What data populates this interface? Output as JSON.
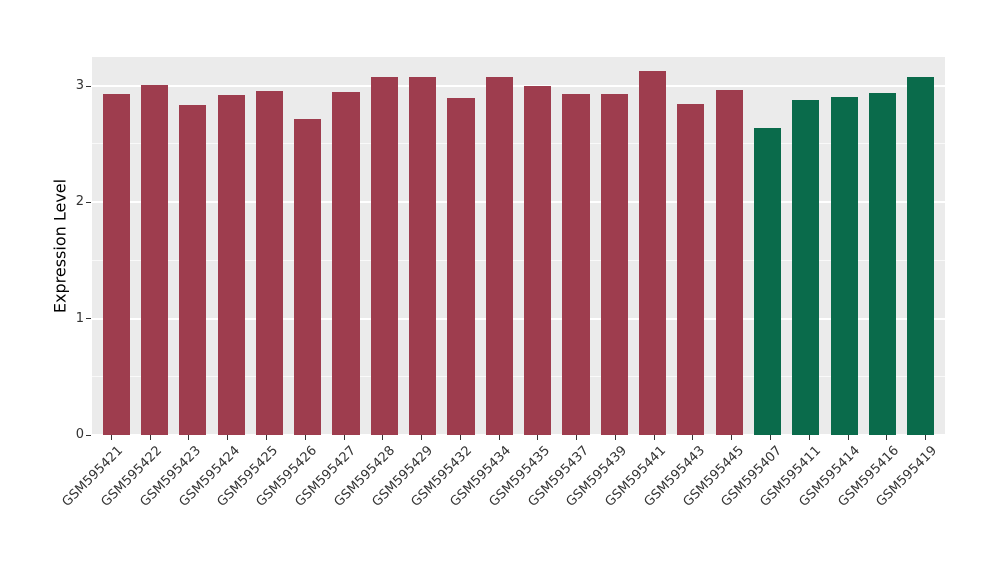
{
  "chart_data": {
    "type": "bar",
    "title": "",
    "xlabel": "",
    "ylabel": "Expression Level",
    "ylim": [
      0,
      3.25
    ],
    "yticks": [
      "0",
      "1",
      "2",
      "3"
    ],
    "ytick_values": [
      0,
      1,
      2,
      3
    ],
    "minor_gridlines": [
      0.5,
      1.5,
      2.5
    ],
    "grid": "on",
    "legend_position": "none",
    "panel_background": "#EBEBEB",
    "grid_color": "#FFFFFF",
    "categories": [
      "GSM595421",
      "GSM595422",
      "GSM595423",
      "GSM595424",
      "GSM595425",
      "GSM595426",
      "GSM595427",
      "GSM595428",
      "GSM595429",
      "GSM595432",
      "GSM595434",
      "GSM595435",
      "GSM595437",
      "GSM595439",
      "GSM595441",
      "GSM595443",
      "GSM595445",
      "GSM595407",
      "GSM595411",
      "GSM595414",
      "GSM595416",
      "GSM595419"
    ],
    "values": [
      2.93,
      3.01,
      2.84,
      2.92,
      2.96,
      2.72,
      2.95,
      3.08,
      3.08,
      2.9,
      3.08,
      3.0,
      2.93,
      2.93,
      3.13,
      2.85,
      2.97,
      2.64,
      2.88,
      2.91,
      2.94,
      3.08
    ],
    "group_colors": {
      "group1": "#9E3D4E",
      "group2": "#0A6B4B"
    },
    "bar_colors": [
      "#9E3D4E",
      "#9E3D4E",
      "#9E3D4E",
      "#9E3D4E",
      "#9E3D4E",
      "#9E3D4E",
      "#9E3D4E",
      "#9E3D4E",
      "#9E3D4E",
      "#9E3D4E",
      "#9E3D4E",
      "#9E3D4E",
      "#9E3D4E",
      "#9E3D4E",
      "#9E3D4E",
      "#9E3D4E",
      "#9E3D4E",
      "#0A6B4B",
      "#0A6B4B",
      "#0A6B4B",
      "#0A6B4B",
      "#0A6B4B"
    ]
  }
}
